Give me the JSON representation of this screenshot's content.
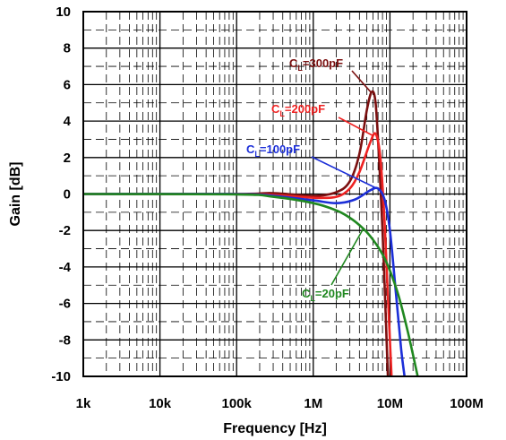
{
  "chart_data": {
    "type": "line",
    "title": "",
    "xlabel": "Frequency [Hz]",
    "ylabel": "Gain [dB]",
    "xscale": "log",
    "xlim": [
      1000,
      100000000
    ],
    "ylim": [
      -10,
      10
    ],
    "grid": true,
    "x_ticks": [
      1000,
      10000,
      100000,
      1000000,
      10000000,
      100000000
    ],
    "x_tick_labels": [
      "1k",
      "10k",
      "100k",
      "1M",
      "10M",
      "100M"
    ],
    "y_ticks": [
      10,
      8,
      6,
      4,
      2,
      0,
      -2,
      -4,
      -6,
      -8,
      -10
    ],
    "y_tick_labels": [
      "10",
      "8",
      "6",
      "4",
      "2",
      "0",
      "-2",
      "-4",
      "-6",
      "-8",
      "-10"
    ],
    "series": [
      {
        "name": "CL=300pF",
        "label_main": "C",
        "label_sub": "L",
        "label_rest": "=300pF",
        "color": "#7b1010",
        "points": [
          [
            1000,
            0
          ],
          [
            100000,
            0
          ],
          [
            300000,
            0.05
          ],
          [
            1000000,
            -0.1
          ],
          [
            2000000,
            0.1
          ],
          [
            3000000,
            0.7
          ],
          [
            4000000,
            2.2
          ],
          [
            5000000,
            4.6
          ],
          [
            5800000,
            5.6
          ],
          [
            6500000,
            5.0
          ],
          [
            7200000,
            2.0
          ],
          [
            8000000,
            -2.0
          ],
          [
            8700000,
            -6.0
          ],
          [
            9400000,
            -10.0
          ]
        ]
      },
      {
        "name": "CL=200pF",
        "label_main": "C",
        "label_sub": "L",
        "label_rest": "=200pF",
        "color": "#ee2222",
        "points": [
          [
            1000,
            0
          ],
          [
            100000,
            0
          ],
          [
            300000,
            -0.05
          ],
          [
            1000000,
            -0.2
          ],
          [
            2000000,
            -0.15
          ],
          [
            3000000,
            0.3
          ],
          [
            4000000,
            1.2
          ],
          [
            5500000,
            2.8
          ],
          [
            6500000,
            3.3
          ],
          [
            7500000,
            2.0
          ],
          [
            8500000,
            -1.5
          ],
          [
            9500000,
            -6.0
          ],
          [
            10500000,
            -10.0
          ]
        ]
      },
      {
        "name": "CL=100pF",
        "label_main": "C",
        "label_sub": "L",
        "label_rest": "=100pF",
        "color": "#1c2fd8",
        "points": [
          [
            1000,
            0
          ],
          [
            100000,
            0
          ],
          [
            300000,
            -0.1
          ],
          [
            1000000,
            -0.35
          ],
          [
            2000000,
            -0.5
          ],
          [
            3500000,
            -0.3
          ],
          [
            5500000,
            0.2
          ],
          [
            7000000,
            0.3
          ],
          [
            8500000,
            -0.3
          ],
          [
            10000000,
            -2.0
          ],
          [
            12000000,
            -5.5
          ],
          [
            14000000,
            -8.5
          ],
          [
            15500000,
            -10.0
          ]
        ]
      },
      {
        "name": "CL=20pF",
        "label_main": "C",
        "label_sub": "L",
        "label_rest": "=20pF",
        "color": "#208820",
        "points": [
          [
            1000,
            0
          ],
          [
            100000,
            -0.02
          ],
          [
            300000,
            -0.15
          ],
          [
            1000000,
            -0.5
          ],
          [
            2000000,
            -0.9
          ],
          [
            3000000,
            -1.3
          ],
          [
            4500000,
            -1.9
          ],
          [
            6000000,
            -2.5
          ],
          [
            8000000,
            -3.3
          ],
          [
            10000000,
            -4.2
          ],
          [
            13000000,
            -5.6
          ],
          [
            17000000,
            -7.5
          ],
          [
            23000000,
            -10.0
          ]
        ]
      }
    ]
  }
}
